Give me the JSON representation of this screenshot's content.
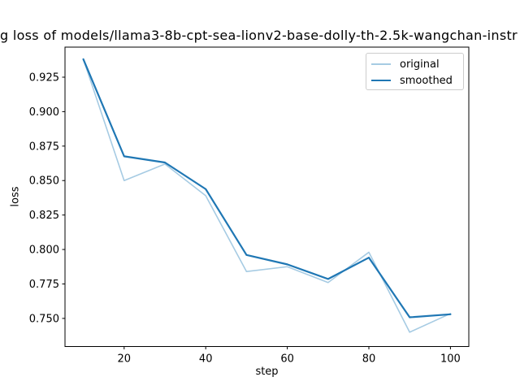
{
  "chart_data": {
    "type": "line",
    "title": "g loss of models/llama3-8b-cpt-sea-lionv2-base-dolly-th-2.5k-wangchan-instr",
    "xlabel": "step",
    "ylabel": "loss",
    "x": [
      10,
      20,
      30,
      40,
      50,
      60,
      70,
      80,
      90,
      100
    ],
    "series": [
      {
        "name": "original",
        "color": "#a6cbe3",
        "linewidth": 1.6,
        "values": [
          0.938,
          0.85,
          0.862,
          0.839,
          0.784,
          0.7875,
          0.776,
          0.798,
          0.74,
          0.7535
        ]
      },
      {
        "name": "smoothed",
        "color": "#1f77b4",
        "linewidth": 2.2,
        "values": [
          0.938,
          0.8676,
          0.8631,
          0.8438,
          0.796,
          0.7892,
          0.7786,
          0.7941,
          0.7508,
          0.753
        ]
      }
    ],
    "xlim": [
      5.5,
      104.5
    ],
    "ylim": [
      0.7296,
      0.9468
    ],
    "xticks": [
      20,
      40,
      60,
      80,
      100
    ],
    "ytick_labels": [
      "0.750",
      "0.775",
      "0.800",
      "0.825",
      "0.850",
      "0.875",
      "0.900",
      "0.925"
    ],
    "grid": false,
    "legend_position": "upper right"
  }
}
